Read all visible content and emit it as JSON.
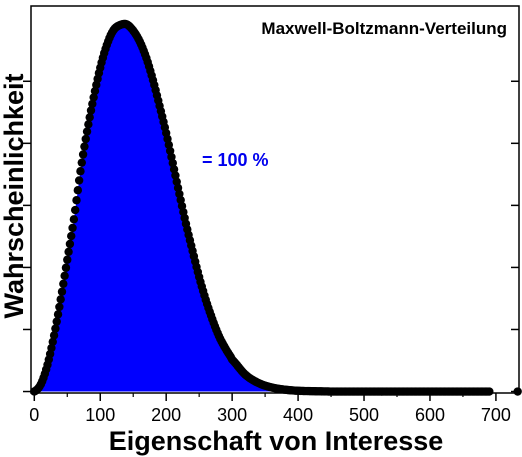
{
  "chart_data": {
    "type": "area",
    "title": "Maxwell-Boltzmann-Verteilung",
    "xlabel": "Eigenschaft von Interesse",
    "ylabel": "Wahrscheinlichkeit",
    "annotation": "= 100 %",
    "xlim": [
      -5,
      735
    ],
    "ylim": [
      -0.004,
      1.05
    ],
    "x_ticks": [
      0,
      100,
      200,
      300,
      400,
      500,
      600,
      700
    ],
    "x_tick_labels": [
      "0",
      "100",
      "200",
      "300",
      "400",
      "500",
      "600",
      "700"
    ],
    "y_ticks_shown_without_labels": true,
    "grid": false,
    "fill_color": "#0000ff",
    "line_color": "#000000",
    "series": [
      {
        "x": [
          0,
          10,
          20,
          30,
          40,
          50,
          60,
          70,
          80,
          90,
          100,
          110,
          120,
          130,
          140,
          150,
          160,
          170,
          180,
          190,
          200,
          210,
          220,
          230,
          240,
          250,
          260,
          270,
          280,
          290,
          300,
          320,
          340,
          360,
          380,
          400,
          420,
          450,
          500,
          550,
          600,
          650,
          690
        ],
        "y": [
          0.0,
          0.02,
          0.073,
          0.153,
          0.251,
          0.359,
          0.469,
          0.6,
          0.708,
          0.801,
          0.882,
          0.944,
          0.984,
          0.998,
          1.0,
          0.983,
          0.953,
          0.908,
          0.848,
          0.778,
          0.704,
          0.622,
          0.538,
          0.457,
          0.383,
          0.312,
          0.25,
          0.197,
          0.151,
          0.117,
          0.087,
          0.046,
          0.023,
          0.011,
          0.005,
          0.002,
          0.001,
          0.0,
          0.0,
          0.0,
          0.0,
          0.0,
          0.0
        ]
      }
    ],
    "outlier_points": [
      {
        "x": 733,
        "y": 0.0
      }
    ]
  }
}
